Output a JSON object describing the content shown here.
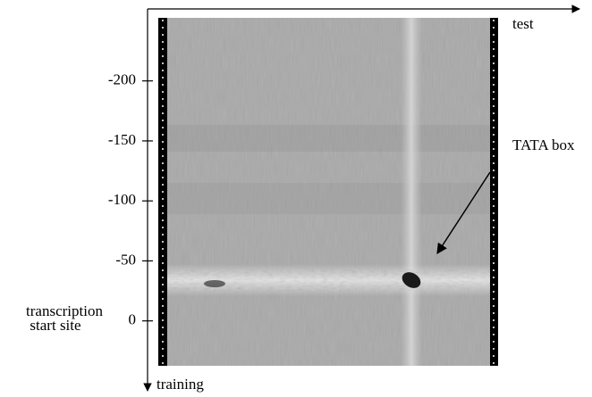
{
  "chart_data": {
    "type": "image",
    "x_label": "test",
    "y_label": "training",
    "ylim": [
      -260,
      56
    ],
    "yticks": [
      -200,
      -150,
      -100,
      -50,
      0
    ],
    "annotations": [
      {
        "text": "TATA box"
      },
      {
        "lines": [
          "transcription",
          "start site"
        ]
      }
    ]
  }
}
